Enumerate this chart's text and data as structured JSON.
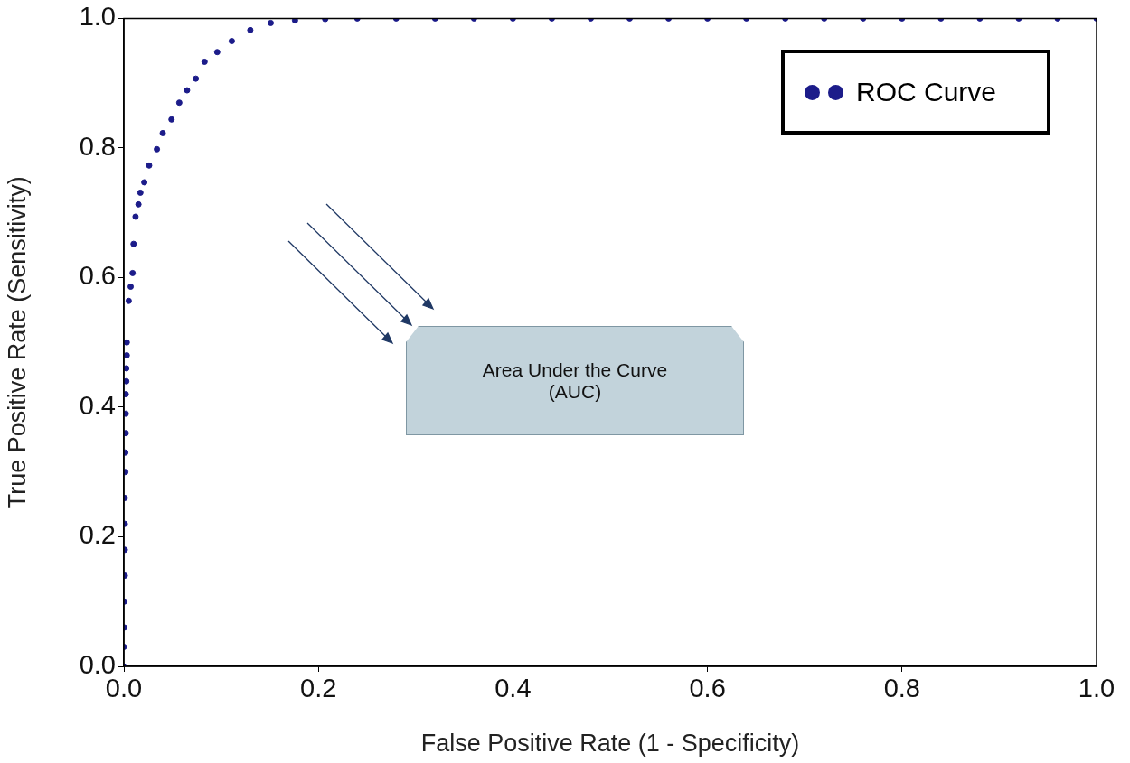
{
  "chart_data": {
    "type": "scatter",
    "xlabel": "False Positive Rate (1 - Specificity)",
    "ylabel": "True Positive Rate (Sensitivity)",
    "xlim": [
      0,
      1
    ],
    "ylim": [
      0,
      1
    ],
    "xticks": [
      {
        "value": 0,
        "label": "0.0"
      },
      {
        "value": 0.2,
        "label": "0.2"
      },
      {
        "value": 0.4,
        "label": "0.4"
      },
      {
        "value": 0.6,
        "label": "0.6"
      },
      {
        "value": 0.8,
        "label": "0.8"
      },
      {
        "value": 1,
        "label": "1.0"
      }
    ],
    "yticks": [
      {
        "value": 0,
        "label": "0.0"
      },
      {
        "value": 0.2,
        "label": "0.2"
      },
      {
        "value": 0.4,
        "label": "0.4"
      },
      {
        "value": 0.6,
        "label": "0.6"
      },
      {
        "value": 0.8,
        "label": "0.8"
      },
      {
        "value": 1,
        "label": "1.0"
      }
    ],
    "grid": false,
    "legend": "top right",
    "marker": "circle",
    "annotations": [
      "Area Under the Curve (AUC)"
    ],
    "series": [
      {
        "name": "ROC Curve",
        "color": "#1c1c8a",
        "x": [
          0,
          0,
          0.0005,
          0.0005,
          0.001,
          0.001,
          0.001,
          0.001,
          0.0015,
          0.0015,
          0.002,
          0.002,
          0.002,
          0.0025,
          0.0025,
          0.003,
          0.003,
          0.005,
          0.007,
          0.009,
          0.01,
          0.012,
          0.015,
          0.017,
          0.021,
          0.026,
          0.034,
          0.04,
          0.049,
          0.057,
          0.065,
          0.074,
          0.083,
          0.096,
          0.111,
          0.13,
          0.151,
          0.176,
          0.207,
          0.24,
          0.28,
          0.32,
          0.36,
          0.4,
          0.44,
          0.48,
          0.52,
          0.56,
          0.6,
          0.64,
          0.68,
          0.72,
          0.76,
          0.8,
          0.84,
          0.88,
          0.92,
          0.96,
          1
        ],
        "values": [
          0,
          0.03,
          0.06,
          0.1,
          0.14,
          0.18,
          0.22,
          0.26,
          0.3,
          0.33,
          0.36,
          0.39,
          0.42,
          0.44,
          0.46,
          0.48,
          0.5,
          0.564,
          0.586,
          0.607,
          0.652,
          0.694,
          0.713,
          0.731,
          0.747,
          0.773,
          0.798,
          0.823,
          0.844,
          0.87,
          0.889,
          0.907,
          0.933,
          0.948,
          0.965,
          0.982,
          0.993,
          0.997,
          0.999,
          1,
          1,
          1,
          1,
          1,
          1,
          1,
          1,
          1,
          1,
          1,
          1,
          1,
          1,
          1,
          1,
          1,
          1,
          1,
          1
        ]
      }
    ]
  }
}
